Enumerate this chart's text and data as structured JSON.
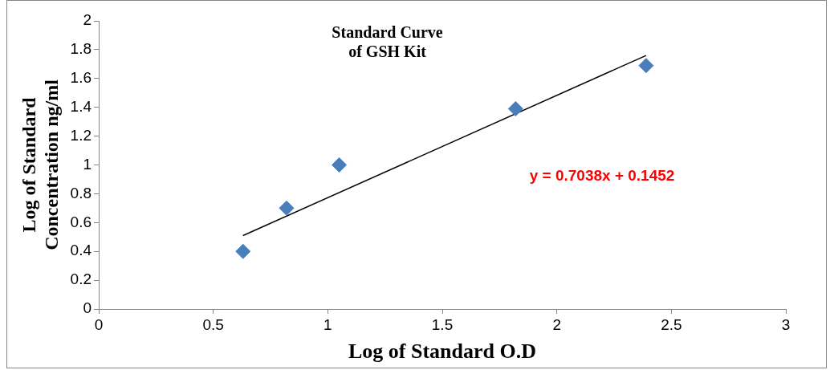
{
  "chart_data": {
    "type": "scatter",
    "title": "Standard Curve of GSH Kit",
    "xlabel": "Log of Standard O.D",
    "ylabel": "Log of Standard Concentration ng/ml",
    "annotations": [
      "y = 0.7038x + 0.1452"
    ],
    "series": [
      {
        "color": "#4a7ebb",
        "marker": "diamond",
        "x": [
          0.63,
          0.82,
          1.05,
          1.82,
          2.39
        ],
        "values": [
          0.4,
          0.7,
          1.0,
          1.39,
          1.69
        ]
      },
      {
        "type": "line",
        "color": "#000000",
        "marker": "none",
        "line_style": "solid",
        "x": [
          0.63,
          2.39
        ],
        "values": [
          0.51,
          1.76
        ]
      }
    ],
    "xlim": [
      0,
      3
    ],
    "xticks": [
      0,
      0.5,
      1,
      1.5,
      2,
      2.5,
      3
    ],
    "ylim": [
      0,
      2
    ],
    "yticks": [
      0,
      0.2,
      0.4,
      0.6,
      0.8,
      1,
      1.2,
      1.4,
      1.6,
      1.8,
      2
    ],
    "grid": false,
    "legend": false
  }
}
